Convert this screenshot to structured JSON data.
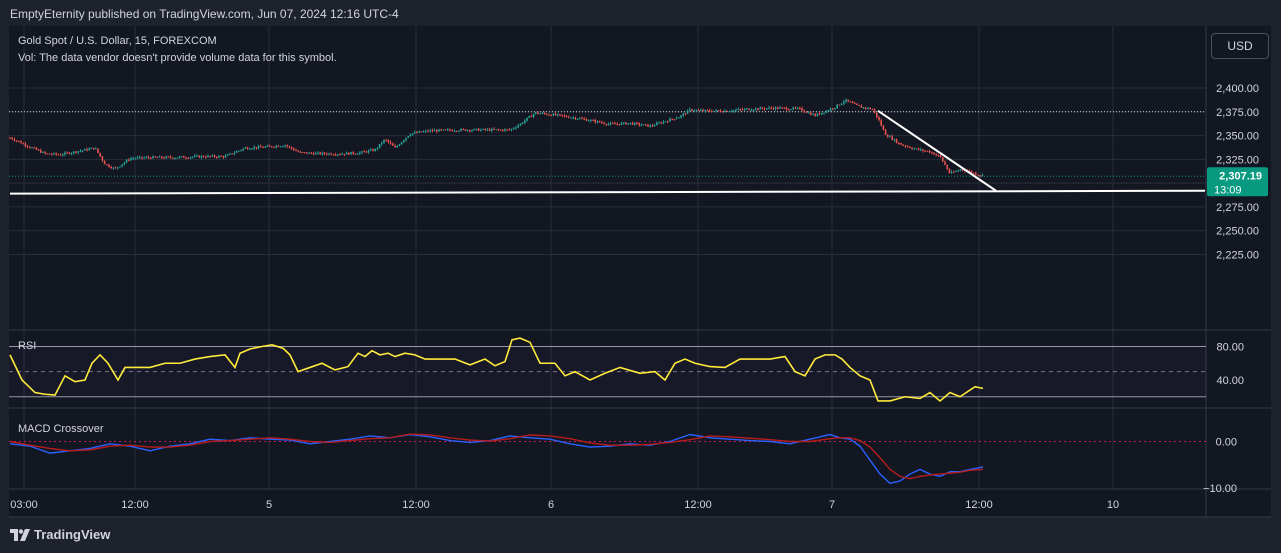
{
  "header": {
    "publisher": "EmptyEternity published on TradingView.com, Jun 07, 2024 12:16 UTC-4"
  },
  "legend": {
    "symbol": "Gold Spot / U.S. Dollar, 15, FOREXCOM",
    "volume_note": "Vol: The data vendor doesn't provide volume data for this symbol."
  },
  "currency_button": "USD",
  "brand": "TradingView",
  "price_tag": {
    "price": "2,307.19",
    "countdown": "13:09"
  },
  "colors": {
    "up": "#26a69a",
    "down": "#ef5350",
    "rsi": "#ffeb3b",
    "macd": "#2962ff",
    "signal": "#b71c1c",
    "tag": "#089981"
  },
  "chart_data": [
    {
      "type": "line",
      "pane": "price",
      "title": "Gold Spot / U.S. Dollar, 15, FOREXCOM",
      "x_ticks": [
        "03:00",
        "12:00",
        "5",
        "12:00",
        "6",
        "12:00",
        "7",
        "12:00",
        "10"
      ],
      "y_ticks": [
        "2,400.00",
        "2,375.00",
        "2,350.00",
        "2,325.00",
        "2,300.00",
        "2,275.00",
        "2,250.00",
        "2,225.00"
      ],
      "ylim": [
        2215,
        2410
      ],
      "last_price": 2307.19,
      "dotted_level": 2375,
      "series": [
        {
          "x": [
            0,
            12,
            30,
            45,
            60,
            80,
            95,
            105,
            115,
            130,
            150,
            175,
            200,
            225,
            245,
            265,
            285,
            300,
            320,
            345,
            360,
            375,
            385,
            395,
            410,
            430,
            460,
            490,
            510,
            520,
            535,
            560,
            585,
            610,
            630,
            650,
            665,
            680,
            690,
            705,
            725,
            750,
            775,
            800,
            815,
            835,
            845,
            860,
            872,
            878,
            885,
            900,
            915,
            930,
            940,
            950,
            962,
            975,
            985
          ],
          "y": [
            2351,
            2347,
            2338,
            2331,
            2330,
            2334,
            2337,
            2320,
            2315,
            2326,
            2327,
            2327,
            2328,
            2328,
            2337,
            2338,
            2340,
            2332,
            2331,
            2331,
            2332,
            2335,
            2346,
            2337,
            2352,
            2355,
            2356,
            2356,
            2356,
            2362,
            2374,
            2371,
            2367,
            2362,
            2363,
            2360,
            2365,
            2370,
            2377,
            2376,
            2376,
            2378,
            2379,
            2378,
            2371,
            2380,
            2387,
            2380,
            2378,
            2368,
            2352,
            2341,
            2336,
            2333,
            2328,
            2310,
            2315,
            2310,
            2307.19
          ]
        }
      ],
      "trendlines": [
        {
          "from": [
            878,
            2376
          ],
          "to": [
            996,
            2292
          ]
        },
        {
          "from": [
            10,
            2289
          ],
          "to": [
            1205,
            2292
          ]
        }
      ]
    },
    {
      "type": "line",
      "pane": "rsi",
      "title": "RSI",
      "y_ticks": [
        "80.00",
        "40.00"
      ],
      "ylim": [
        0,
        100
      ],
      "levels": [
        80,
        50,
        20
      ],
      "series": [
        {
          "name": "RSI",
          "x": [
            10,
            22,
            35,
            45,
            55,
            65,
            75,
            85,
            92,
            100,
            108,
            118,
            125,
            135,
            150,
            165,
            180,
            195,
            210,
            225,
            235,
            240,
            250,
            262,
            272,
            283,
            290,
            298,
            310,
            322,
            335,
            348,
            358,
            365,
            372,
            380,
            388,
            395,
            405,
            415,
            425,
            440,
            455,
            470,
            485,
            495,
            505,
            512,
            520,
            530,
            540,
            555,
            565,
            575,
            590,
            605,
            620,
            640,
            655,
            665,
            675,
            685,
            695,
            710,
            725,
            740,
            755,
            770,
            785,
            795,
            805,
            815,
            825,
            835,
            842,
            850,
            860,
            870,
            878,
            890,
            905,
            920,
            930,
            940,
            950,
            960,
            975,
            983
          ],
          "y": [
            70,
            40,
            25,
            23,
            22,
            45,
            38,
            40,
            60,
            70,
            60,
            40,
            55,
            55,
            55,
            60,
            60,
            65,
            68,
            70,
            55,
            72,
            77,
            80,
            82,
            78,
            70,
            50,
            55,
            60,
            52,
            56,
            72,
            68,
            75,
            70,
            72,
            68,
            72,
            70,
            65,
            65,
            65,
            58,
            65,
            57,
            62,
            88,
            90,
            85,
            60,
            60,
            45,
            50,
            40,
            48,
            55,
            48,
            50,
            40,
            60,
            65,
            60,
            56,
            55,
            65,
            65,
            65,
            68,
            50,
            45,
            65,
            70,
            70,
            65,
            55,
            45,
            40,
            15,
            15,
            20,
            18,
            25,
            15,
            25,
            20,
            32,
            30
          ]
        }
      ]
    },
    {
      "type": "line",
      "pane": "macd",
      "title": "MACD Crossover",
      "y_ticks": [
        "0.00",
        "−10.00"
      ],
      "ylim": [
        -11,
        3.5
      ],
      "levels": [
        0
      ],
      "series": [
        {
          "name": "MACD",
          "x": [
            10,
            30,
            50,
            70,
            90,
            110,
            130,
            150,
            170,
            190,
            210,
            230,
            250,
            270,
            290,
            310,
            330,
            350,
            370,
            390,
            410,
            430,
            450,
            470,
            490,
            510,
            530,
            550,
            570,
            590,
            610,
            630,
            650,
            670,
            690,
            710,
            730,
            750,
            770,
            790,
            810,
            830,
            840,
            850,
            860,
            870,
            880,
            890,
            900,
            910,
            920,
            930,
            940,
            950,
            960,
            970,
            983
          ],
          "y": [
            -0.5,
            -1,
            -2.5,
            -2,
            -1.5,
            -0.5,
            -1,
            -2,
            -1,
            -0.5,
            0.5,
            0.2,
            0.8,
            0.5,
            0.3,
            -0.5,
            0,
            0.5,
            1.2,
            0.8,
            1.5,
            1,
            0.2,
            -0.2,
            0.2,
            1.2,
            0.8,
            0.5,
            -0.5,
            -1.2,
            -1,
            -0.5,
            -0.8,
            0,
            1.5,
            0.8,
            0.5,
            0.2,
            0,
            -0.5,
            0.5,
            1.5,
            0.8,
            0.5,
            -1,
            -4,
            -7,
            -9,
            -8.5,
            -7,
            -6,
            -7,
            -7.5,
            -6.5,
            -6.5,
            -6,
            -5.5
          ]
        },
        {
          "name": "Signal",
          "x": [
            10,
            30,
            50,
            70,
            90,
            110,
            130,
            150,
            170,
            190,
            210,
            230,
            250,
            270,
            290,
            310,
            330,
            350,
            370,
            390,
            410,
            430,
            450,
            470,
            490,
            510,
            530,
            550,
            570,
            590,
            610,
            630,
            650,
            670,
            690,
            710,
            730,
            750,
            770,
            790,
            810,
            830,
            840,
            850,
            860,
            870,
            880,
            890,
            900,
            910,
            920,
            930,
            940,
            950,
            960,
            970,
            983
          ],
          "y": [
            0,
            -0.8,
            -1.5,
            -2,
            -1.8,
            -1,
            -0.8,
            -1.2,
            -1.2,
            -0.8,
            0,
            0.2,
            0.5,
            0.8,
            0.5,
            0,
            -0.2,
            0.2,
            0.6,
            0.8,
            1.6,
            1.4,
            0.8,
            0.3,
            0.1,
            0.6,
            1.4,
            1.2,
            0.6,
            -0.3,
            -0.8,
            -0.8,
            -0.6,
            -0.2,
            0.4,
            1.2,
            1,
            0.7,
            0.4,
            0,
            0,
            0.6,
            0.8,
            0.8,
            0.2,
            -1.2,
            -3.5,
            -6,
            -7.5,
            -8,
            -7.5,
            -7.2,
            -7,
            -6.8,
            -6.6,
            -6.2,
            -6
          ]
        }
      ]
    }
  ]
}
